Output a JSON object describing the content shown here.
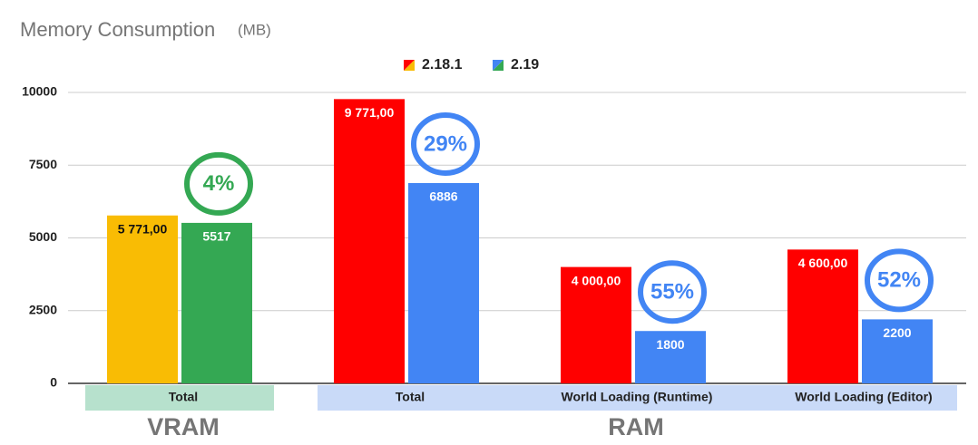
{
  "chart_data": {
    "type": "bar",
    "title": "Memory Consumption",
    "subtitle": "(MB)",
    "categories": [
      "Total",
      "Total",
      "World Loading (Runtime)",
      "World Loading (Editor)"
    ],
    "category_groups": [
      "VRAM",
      "RAM",
      "RAM",
      "RAM"
    ],
    "series": [
      {
        "name": "2.18.1",
        "colors": [
          "#f9bc04",
          "#ff0000",
          "#ff0000",
          "#ff0000"
        ],
        "values": [
          5771,
          9771,
          4000,
          4600
        ],
        "value_labels": [
          "5 771,00",
          "9 771,00",
          "4 000,00",
          "4 600,00"
        ]
      },
      {
        "name": "2.19",
        "colors": [
          "#34a853",
          "#4285f4",
          "#4285f4",
          "#4285f4"
        ],
        "values": [
          5517,
          6886,
          1800,
          2200
        ]
      }
    ],
    "annotations": [
      "4%",
      "29%",
      "55%",
      "52%"
    ],
    "ylim": [
      0,
      10000
    ],
    "yticks": [
      0,
      2500,
      5000,
      7500,
      10000
    ],
    "grid": true,
    "legend": "top"
  }
}
